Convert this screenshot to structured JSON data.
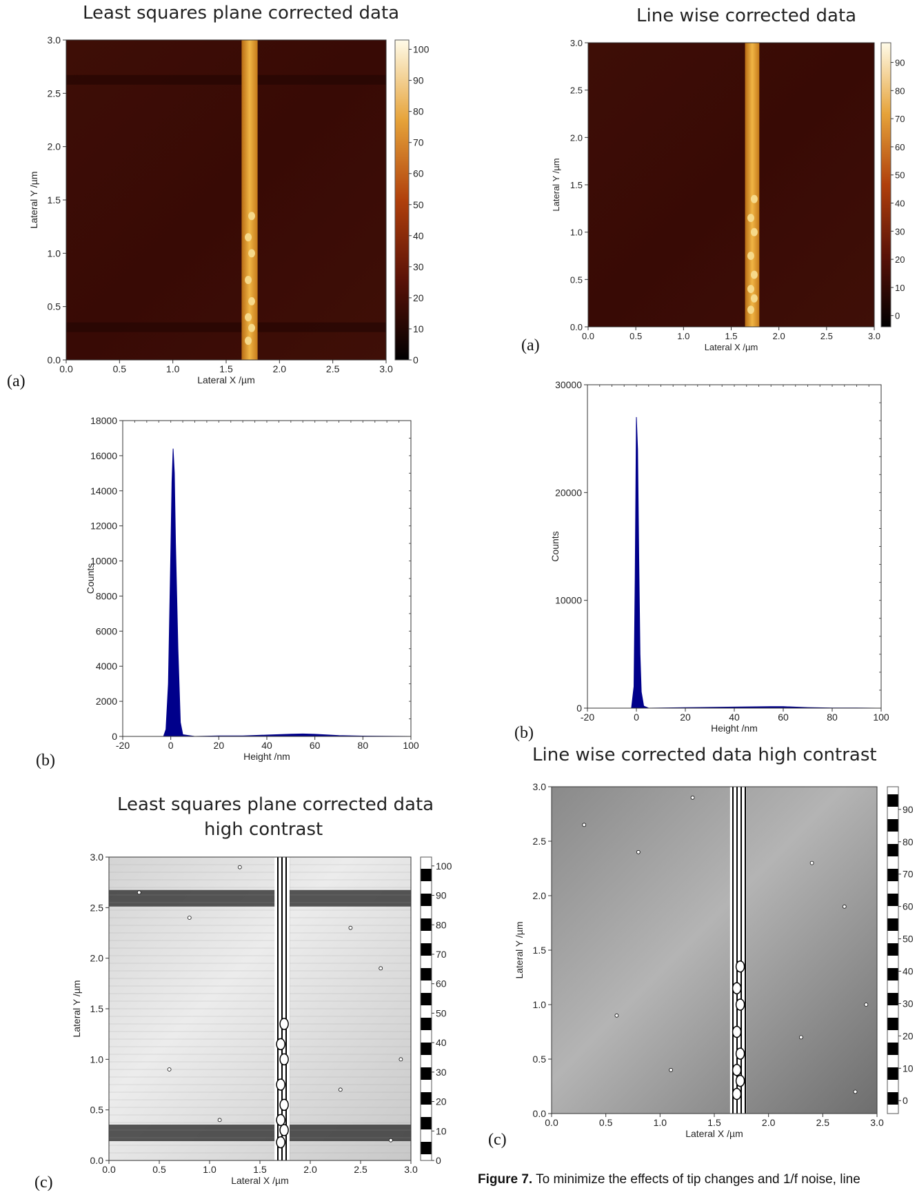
{
  "titles": {
    "left_a": "Least squares plane corrected data",
    "right_a": "Line wise corrected data",
    "right_c": "Line wise corrected data high contrast",
    "left_c_line1": "Least squares plane corrected data",
    "left_c_line2": "high contrast"
  },
  "labels": {
    "a": "(a)",
    "b": "(b)",
    "c": "(c)"
  },
  "caption": {
    "figure": "Figure 7.",
    "text": "To minimize the effects of tip changes and 1/f noise, line"
  },
  "colors": {
    "afm_background": "#3a0b05",
    "afm_stripe": "#e0a030",
    "histogram_fill": "#00008b",
    "axis": "#222222"
  },
  "chart_data": [
    {
      "id": "left_a",
      "type": "heatmap",
      "title": "Least squares plane corrected data",
      "xlabel": "Lateral X /µm",
      "ylabel": "Lateral Y /µm",
      "xlim": [
        0,
        3
      ],
      "ylim": [
        0,
        3
      ],
      "x_ticks": [
        "0.0",
        "0.5",
        "1.0",
        "1.5",
        "2.0",
        "2.5",
        "3.0"
      ],
      "y_ticks": [
        "0.0",
        "0.5",
        "1.0",
        "1.5",
        "2.0",
        "2.5",
        "3.0"
      ],
      "colorbar": {
        "scheme": "afmhot",
        "min": 0,
        "max": 103,
        "ticks": [
          "0",
          "10",
          "20",
          "30",
          "40",
          "50",
          "60",
          "70",
          "80",
          "90",
          "100"
        ]
      },
      "stripe_x": 1.72,
      "dark_bands_y": [
        2.62,
        0.3
      ]
    },
    {
      "id": "right_a",
      "type": "heatmap",
      "title": "Line wise corrected data",
      "xlabel": "Lateral X /µm",
      "ylabel": "Lateral Y /µm",
      "xlim": [
        0,
        3
      ],
      "ylim": [
        0,
        3
      ],
      "x_ticks": [
        "0.0",
        "0.5",
        "1.0",
        "1.5",
        "2.0",
        "2.5",
        "3.0"
      ],
      "y_ticks": [
        "0.0",
        "0.5",
        "1.0",
        "1.5",
        "2.0",
        "2.5",
        "3.0"
      ],
      "colorbar": {
        "scheme": "afmhot",
        "min": -4,
        "max": 97,
        "ticks": [
          "0",
          "10",
          "20",
          "30",
          "40",
          "50",
          "60",
          "70",
          "80",
          "90"
        ]
      },
      "stripe_x": 1.72
    },
    {
      "id": "left_b",
      "type": "area",
      "xlabel": "Height /nm",
      "ylabel": "Counts",
      "xlim": [
        -20,
        100
      ],
      "ylim": [
        0,
        18000
      ],
      "x_ticks": [
        "-20",
        "0",
        "20",
        "40",
        "60",
        "80",
        "100"
      ],
      "y_ticks": [
        "0",
        "2000",
        "4000",
        "6000",
        "8000",
        "10000",
        "12000",
        "14000",
        "16000",
        "18000"
      ],
      "x": [
        -3,
        -2,
        -1,
        0,
        0.5,
        1,
        1.5,
        2,
        3,
        4,
        5,
        10,
        20,
        30,
        40,
        50,
        55,
        60,
        70,
        80,
        90,
        100
      ],
      "y": [
        0,
        400,
        3000,
        10500,
        14500,
        16400,
        15000,
        11000,
        5000,
        800,
        100,
        0,
        30,
        30,
        80,
        130,
        140,
        120,
        50,
        20,
        10,
        0
      ]
    },
    {
      "id": "right_b",
      "type": "area",
      "xlabel": "Height /nm",
      "ylabel": "Counts",
      "xlim": [
        -20,
        100
      ],
      "ylim": [
        0,
        30000
      ],
      "x_ticks": [
        "-20",
        "0",
        "20",
        "40",
        "60",
        "80",
        "100"
      ],
      "y_ticks": [
        "0",
        "10000",
        "20000",
        "30000"
      ],
      "x": [
        -2,
        -1,
        -0.5,
        0,
        0.5,
        1,
        1.5,
        2,
        3,
        5,
        20,
        40,
        55,
        60,
        70,
        80,
        90,
        100
      ],
      "y": [
        0,
        2000,
        12000,
        27000,
        24000,
        14000,
        5000,
        1500,
        200,
        0,
        50,
        100,
        150,
        140,
        60,
        20,
        10,
        0
      ]
    },
    {
      "id": "left_c",
      "type": "heatmap",
      "title": "Least squares plane corrected data high contrast",
      "xlabel": "Lateral X /µm",
      "ylabel": "Lateral Y /µm",
      "xlim": [
        0,
        3
      ],
      "ylim": [
        0,
        3
      ],
      "x_ticks": [
        "0.0",
        "0.5",
        "1.0",
        "1.5",
        "2.0",
        "2.5",
        "3.0"
      ],
      "y_ticks": [
        "0.0",
        "0.5",
        "1.0",
        "1.5",
        "2.0",
        "2.5",
        "3.0"
      ],
      "colorbar": {
        "scheme": "banded-gray",
        "min": 0,
        "max": 103,
        "ticks": [
          "0",
          "10",
          "20",
          "30",
          "40",
          "50",
          "60",
          "70",
          "80",
          "90",
          "100"
        ]
      },
      "stripe_x": 1.72,
      "dark_bands_y": [
        2.62,
        0.3
      ]
    },
    {
      "id": "right_c",
      "type": "heatmap",
      "title": "Line wise corrected data high contrast",
      "xlabel": "Lateral X /µm",
      "ylabel": "Lateral Y /µm",
      "xlim": [
        0,
        3
      ],
      "ylim": [
        0,
        3
      ],
      "x_ticks": [
        "0.0",
        "0.5",
        "1.0",
        "1.5",
        "2.0",
        "2.5",
        "3.0"
      ],
      "y_ticks": [
        "0.0",
        "0.5",
        "1.0",
        "1.5",
        "2.0",
        "2.5",
        "3.0"
      ],
      "colorbar": {
        "scheme": "banded-gray",
        "min": -4,
        "max": 97,
        "ticks": [
          "0",
          "10",
          "20",
          "30",
          "40",
          "50",
          "60",
          "70",
          "80",
          "90"
        ]
      },
      "stripe_x": 1.72
    }
  ]
}
